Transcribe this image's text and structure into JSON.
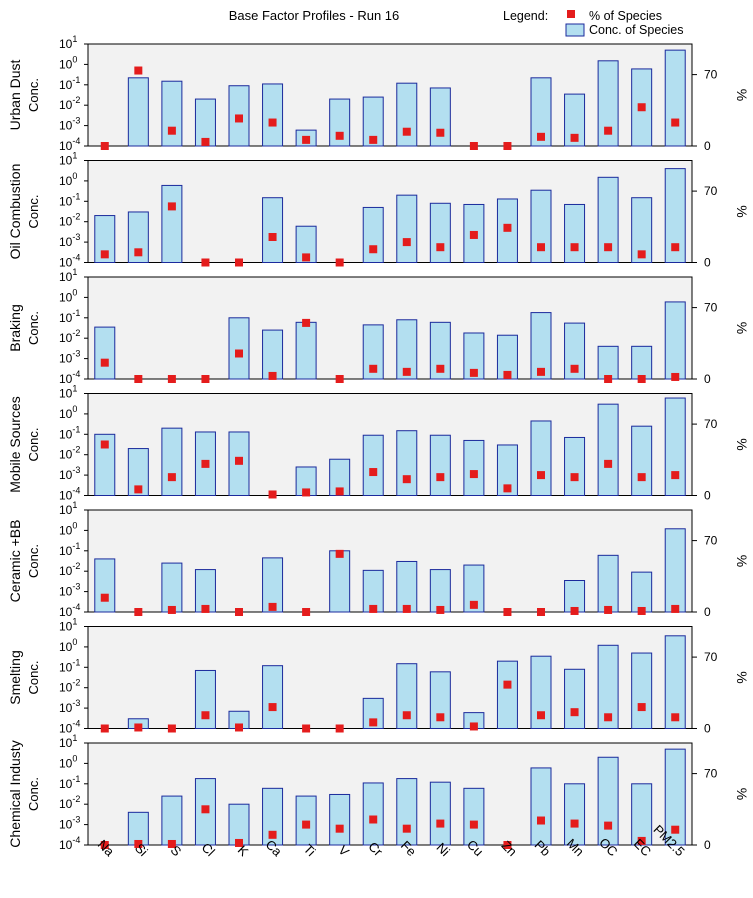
{
  "chart_data": {
    "type": "bar",
    "title": "Base Factor Profiles - Run 16",
    "legend": {
      "title": "Legend:",
      "entries": [
        {
          "label": "% of Species",
          "marker": "square",
          "color": "#e41c1c"
        },
        {
          "label": "Conc. of Species",
          "marker": "bar",
          "color": "#b3dff0",
          "edge": "#1b2a9c"
        }
      ],
      "placement": "top-right"
    },
    "categories": [
      "Na",
      "Si",
      "S",
      "Cl",
      "K",
      "Ca",
      "Ti",
      "V",
      "Cr",
      "Fe",
      "Ni",
      "Cu",
      "Zn",
      "Pb",
      "Mn",
      "OC",
      "EC",
      "PM2.5"
    ],
    "left_axis": {
      "scale": "log10",
      "exp_min": -4,
      "exp_max": 1,
      "tick_base": "10",
      "tick_exponents": [
        "-4",
        "-3",
        "-2",
        "-1",
        "0",
        "1"
      ]
    },
    "right_axis": {
      "label": "%",
      "range": [
        0,
        100
      ],
      "tick_labels": [
        "0",
        "70"
      ],
      "tick_values": [
        0,
        70
      ]
    },
    "colors": {
      "bar_fill": "#b3dff0",
      "bar_edge": "#1b2a9c",
      "marker": "#e41c1c",
      "panel_bg": "#f2f2f2"
    },
    "panels": [
      {
        "name": "Urban Dust",
        "ylabel": "Conc.",
        "conc": [
          null,
          0.22,
          0.15,
          0.02,
          0.09,
          0.11,
          0.0006,
          0.02,
          0.025,
          0.12,
          0.07,
          null,
          null,
          0.22,
          0.035,
          1.5,
          0.6,
          5.0
        ],
        "pct": [
          0,
          74,
          15,
          4,
          27,
          23,
          6,
          10,
          6,
          14,
          13,
          0,
          0,
          9,
          8,
          15,
          38,
          23
        ]
      },
      {
        "name": "Oil Combustion",
        "ylabel": "Conc.",
        "conc": [
          0.02,
          0.03,
          0.6,
          null,
          null,
          0.15,
          0.006,
          null,
          0.05,
          0.2,
          0.08,
          0.07,
          0.13,
          0.35,
          0.07,
          1.5,
          0.15,
          4.0
        ],
        "pct": [
          8,
          10,
          55,
          0,
          0,
          25,
          5,
          0,
          13,
          20,
          15,
          27,
          34,
          15,
          15,
          15,
          8,
          15
        ]
      },
      {
        "name": "Braking",
        "ylabel": "Conc.",
        "conc": [
          0.035,
          null,
          null,
          null,
          0.1,
          0.025,
          0.06,
          null,
          0.045,
          0.08,
          0.06,
          0.018,
          0.014,
          0.18,
          0.055,
          0.004,
          0.004,
          0.6
        ],
        "pct": [
          16,
          0,
          0,
          0,
          25,
          3,
          55,
          0,
          10,
          7,
          10,
          6,
          4,
          7,
          10,
          0,
          0,
          2
        ]
      },
      {
        "name": "Mobile Sources",
        "ylabel": "Conc.",
        "conc": [
          0.1,
          0.02,
          0.2,
          0.13,
          0.13,
          null,
          0.0025,
          0.006,
          0.09,
          0.15,
          0.09,
          0.05,
          0.03,
          0.45,
          0.07,
          3.0,
          0.25,
          6.0
        ],
        "pct": [
          50,
          6,
          18,
          31,
          34,
          1,
          3,
          4,
          23,
          16,
          18,
          21,
          7,
          20,
          18,
          31,
          18,
          20
        ]
      },
      {
        "name": "Ceramic +BB",
        "ylabel": "Conc.",
        "conc": [
          0.04,
          null,
          0.025,
          0.012,
          null,
          0.045,
          null,
          0.1,
          0.011,
          0.03,
          0.012,
          0.02,
          null,
          null,
          0.0035,
          0.06,
          0.009,
          1.2
        ],
        "pct": [
          14,
          0,
          2,
          3,
          0,
          5,
          0,
          57,
          3,
          3,
          2,
          7,
          0,
          0,
          1,
          2,
          1,
          3
        ]
      },
      {
        "name": "Smelting",
        "ylabel": "Conc.",
        "conc": [
          null,
          0.0003,
          null,
          0.07,
          0.0007,
          0.12,
          null,
          null,
          0.003,
          0.15,
          0.06,
          0.0006,
          0.2,
          0.35,
          0.08,
          1.2,
          0.5,
          3.5
        ],
        "pct": [
          0,
          1,
          0,
          13,
          1,
          21,
          0,
          0,
          6,
          13,
          11,
          2,
          43,
          13,
          16,
          11,
          21,
          11
        ]
      },
      {
        "name": "Chemical Industy",
        "ylabel": "Conc.",
        "conc": [
          null,
          0.004,
          0.025,
          0.18,
          0.01,
          0.06,
          0.025,
          0.03,
          0.11,
          0.18,
          0.12,
          0.06,
          null,
          0.6,
          0.1,
          2.0,
          0.1,
          5.0
        ],
        "pct": [
          0,
          1,
          1,
          35,
          2,
          10,
          20,
          16,
          25,
          16,
          21,
          20,
          0,
          24,
          21,
          19,
          4,
          15
        ]
      }
    ]
  }
}
